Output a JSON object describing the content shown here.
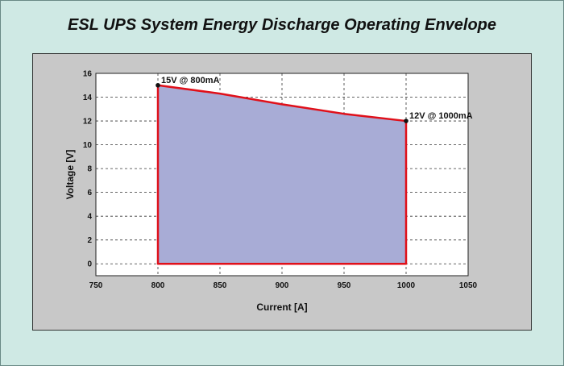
{
  "chart_data": {
    "type": "area",
    "title": "ESL UPS System Energy Discharge Operating Envelope",
    "xlabel": "Current [A]",
    "ylabel": "Voltage [V]",
    "xlim": [
      750,
      1050
    ],
    "ylim": [
      -1,
      16
    ],
    "xticks": [
      750,
      800,
      850,
      900,
      950,
      1000,
      1050
    ],
    "yticks": [
      0,
      2,
      4,
      6,
      8,
      10,
      12,
      14,
      16
    ],
    "grid": true,
    "envelope": [
      {
        "x": 800,
        "y": 0
      },
      {
        "x": 800,
        "y": 15
      },
      {
        "x": 850,
        "y": 14.3
      },
      {
        "x": 900,
        "y": 13.4
      },
      {
        "x": 950,
        "y": 12.6
      },
      {
        "x": 1000,
        "y": 12
      },
      {
        "x": 1000,
        "y": 0
      }
    ],
    "points": [
      {
        "x": 800,
        "y": 15,
        "label": "15V @ 800mA"
      },
      {
        "x": 1000,
        "y": 12,
        "label": "12V @ 1000mA"
      }
    ],
    "colors": {
      "fill": "#a8acd6",
      "line": "#e0101a",
      "grid": "#333333",
      "plot_bg": "#ffffff",
      "panel_bg": "#c8c8c8"
    }
  }
}
